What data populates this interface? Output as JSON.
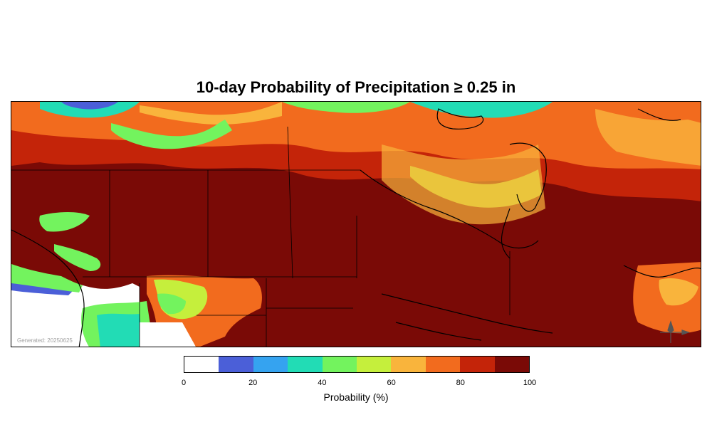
{
  "title": "10-day Probability of Precipitation ≥ 0.25 in",
  "generated_text": "Generated: 20250625",
  "colorbar": {
    "label": "Probability (%)",
    "tick_labels": [
      "0",
      "20",
      "40",
      "60",
      "80",
      "100"
    ],
    "bins": [
      {
        "range": "0-10",
        "color": "#ffffff"
      },
      {
        "range": "10-20",
        "color": "#4b5fd8"
      },
      {
        "range": "20-30",
        "color": "#35a3f0"
      },
      {
        "range": "30-40",
        "color": "#22dcb5"
      },
      {
        "range": "40-50",
        "color": "#73f35e"
      },
      {
        "range": "50-60",
        "color": "#c5ef3c"
      },
      {
        "range": "60-70",
        "color": "#f9b43c"
      },
      {
        "range": "70-80",
        "color": "#f26b1e"
      },
      {
        "range": "80-90",
        "color": "#c42409"
      },
      {
        "range": "90-100",
        "color": "#7a0a06"
      }
    ]
  },
  "compass_icon": "compass-rose-icon"
}
